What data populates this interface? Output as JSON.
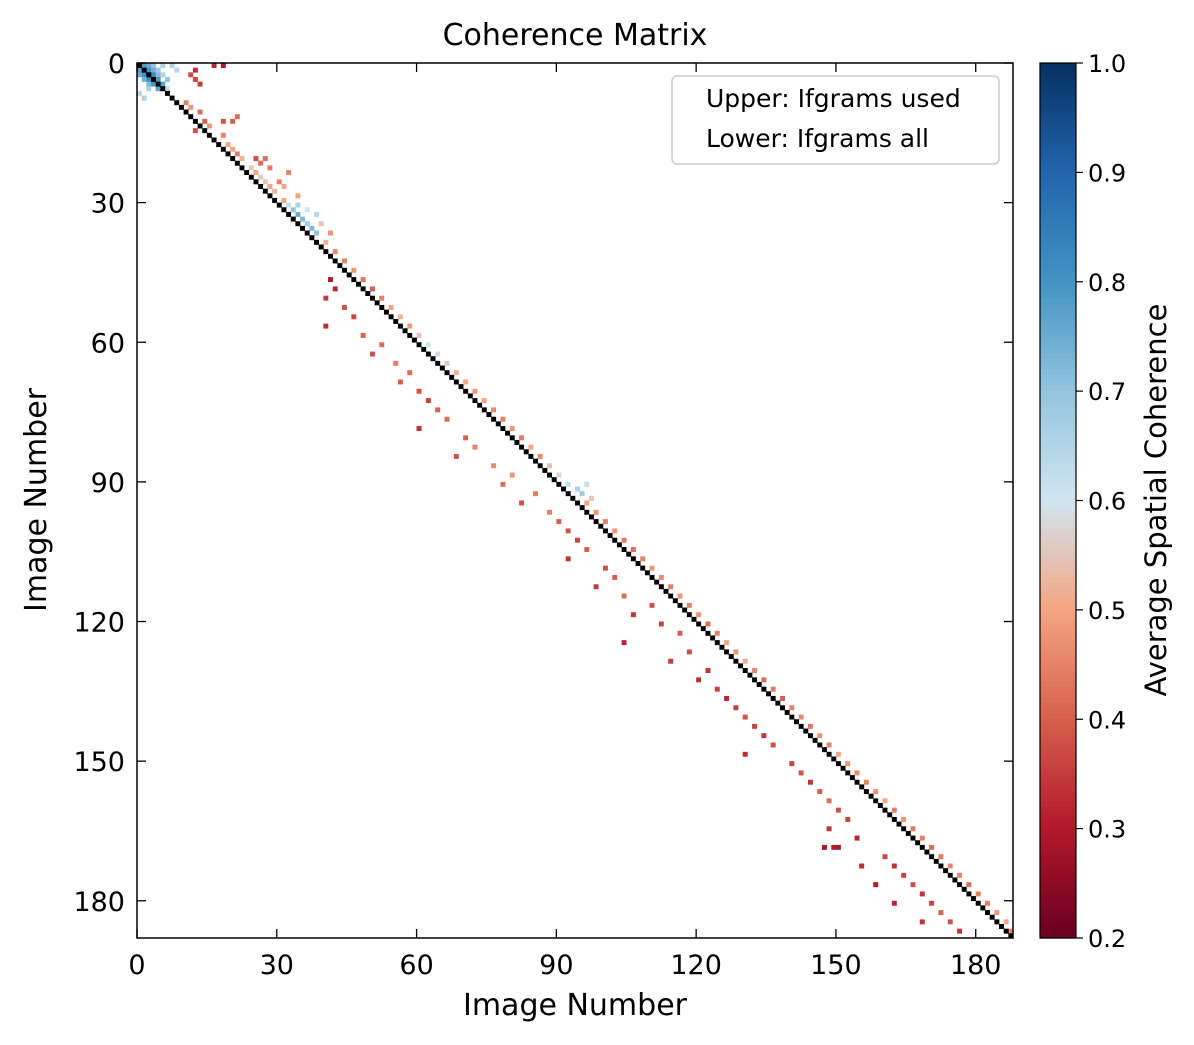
{
  "chart_data": {
    "type": "heatmap",
    "title": "Coherence Matrix",
    "xlabel": "Image Number",
    "ylabel": "Image Number",
    "n_images": 188,
    "xlim": [
      0,
      188
    ],
    "ylim": [
      188,
      0
    ],
    "x_ticks": [
      0,
      30,
      60,
      90,
      120,
      150,
      180
    ],
    "y_ticks": [
      0,
      30,
      60,
      90,
      120,
      150,
      180
    ],
    "diagonal_value": 1.0,
    "diagonal_color": "#000000",
    "colorbar": {
      "label": "Average Spatial Coherence",
      "vmin": 0.2,
      "vmax": 1.0,
      "ticks": [
        "0.2",
        "0.3",
        "0.4",
        "0.5",
        "0.6",
        "0.7",
        "0.8",
        "0.9",
        "1.0"
      ],
      "cmap": "RdBu",
      "colors": [
        "#67001f",
        "#b2182b",
        "#d6604d",
        "#f4a582",
        "#d1e5f0",
        "#92c5de",
        "#4393c3",
        "#2166ac",
        "#053061"
      ]
    },
    "legend": {
      "placement": "upper-right",
      "entries": [
        "Upper: Ifgrams used",
        "Lower: Ifgrams all"
      ]
    },
    "cells": [
      [
        0,
        1,
        0.78
      ],
      [
        0,
        2,
        0.75
      ],
      [
        0,
        3,
        0.7
      ],
      [
        1,
        0,
        0.78
      ],
      [
        1,
        2,
        0.8
      ],
      [
        1,
        3,
        0.74
      ],
      [
        1,
        4,
        0.68
      ],
      [
        2,
        0,
        0.75
      ],
      [
        2,
        1,
        0.8
      ],
      [
        2,
        3,
        0.82
      ],
      [
        2,
        4,
        0.72
      ],
      [
        2,
        5,
        0.66
      ],
      [
        3,
        1,
        0.74
      ],
      [
        3,
        2,
        0.82
      ],
      [
        3,
        4,
        0.79
      ],
      [
        3,
        6,
        0.7
      ],
      [
        4,
        2,
        0.72
      ],
      [
        4,
        3,
        0.79
      ],
      [
        4,
        5,
        0.77
      ],
      [
        5,
        4,
        0.77
      ],
      [
        5,
        6,
        0.62
      ],
      [
        0,
        5,
        0.65
      ],
      [
        0,
        7,
        0.66
      ],
      [
        1,
        8,
        0.64
      ],
      [
        6,
        0,
        0.64
      ],
      [
        7,
        1,
        0.66
      ],
      [
        5,
        2,
        0.66
      ],
      [
        8,
        10,
        0.45
      ],
      [
        9,
        11,
        0.48
      ],
      [
        10,
        13,
        0.42
      ],
      [
        13,
        15,
        0.48
      ],
      [
        14,
        12,
        0.38
      ],
      [
        12,
        14,
        0.4
      ],
      [
        3,
        12,
        0.37
      ],
      [
        4,
        13,
        0.35
      ],
      [
        2,
        11,
        0.37
      ],
      [
        1,
        12,
        0.33
      ],
      [
        0,
        16,
        0.32
      ],
      [
        0,
        18,
        0.3
      ],
      [
        12,
        18,
        0.38
      ],
      [
        12,
        20,
        0.4
      ],
      [
        11,
        21,
        0.42
      ],
      [
        15,
        18,
        0.45
      ],
      [
        17,
        19,
        0.5
      ],
      [
        19,
        21,
        0.45
      ],
      [
        18,
        20,
        0.5
      ],
      [
        20,
        22,
        0.52
      ],
      [
        22,
        24,
        0.55
      ],
      [
        23,
        25,
        0.5
      ],
      [
        25,
        27,
        0.55
      ],
      [
        26,
        28,
        0.5
      ],
      [
        24,
        26,
        0.56
      ],
      [
        20,
        25,
        0.38
      ],
      [
        21,
        26,
        0.42
      ],
      [
        22,
        28,
        0.44
      ],
      [
        25,
        30,
        0.45
      ],
      [
        27,
        29,
        0.52
      ],
      [
        29,
        31,
        0.5
      ],
      [
        30,
        32,
        0.62
      ],
      [
        31,
        33,
        0.7
      ],
      [
        32,
        34,
        0.75
      ],
      [
        33,
        35,
        0.72
      ],
      [
        34,
        36,
        0.68
      ],
      [
        35,
        37,
        0.72
      ],
      [
        36,
        38,
        0.7
      ],
      [
        30,
        34,
        0.66
      ],
      [
        31,
        36,
        0.6
      ],
      [
        32,
        38,
        0.64
      ],
      [
        34,
        39,
        0.55
      ],
      [
        36,
        41,
        0.48
      ],
      [
        28,
        34,
        0.5
      ],
      [
        26,
        31,
        0.5
      ],
      [
        23,
        32,
        0.45
      ],
      [
        20,
        27,
        0.42
      ],
      [
        38,
        40,
        0.52
      ],
      [
        40,
        42,
        0.46
      ],
      [
        42,
        44,
        0.45
      ],
      [
        44,
        46,
        0.48
      ],
      [
        46,
        48,
        0.43
      ],
      [
        48,
        50,
        0.4
      ],
      [
        50,
        52,
        0.45
      ],
      [
        52,
        54,
        0.5
      ],
      [
        54,
        56,
        0.52
      ],
      [
        56,
        58,
        0.48
      ],
      [
        58,
        60,
        0.55
      ],
      [
        60,
        62,
        0.6
      ],
      [
        62,
        64,
        0.58
      ],
      [
        64,
        66,
        0.55
      ],
      [
        66,
        68,
        0.52
      ],
      [
        68,
        70,
        0.5
      ],
      [
        70,
        72,
        0.48
      ],
      [
        72,
        74,
        0.5
      ],
      [
        74,
        76,
        0.46
      ],
      [
        76,
        78,
        0.45
      ],
      [
        78,
        80,
        0.48
      ],
      [
        80,
        82,
        0.44
      ],
      [
        82,
        84,
        0.5
      ],
      [
        84,
        86,
        0.46
      ],
      [
        86,
        88,
        0.54
      ],
      [
        88,
        90,
        0.58
      ],
      [
        90,
        92,
        0.62
      ],
      [
        91,
        94,
        0.66
      ],
      [
        92,
        95,
        0.68
      ],
      [
        90,
        96,
        0.62
      ],
      [
        93,
        97,
        0.55
      ],
      [
        94,
        96,
        0.5
      ],
      [
        96,
        98,
        0.48
      ],
      [
        98,
        100,
        0.45
      ],
      [
        100,
        102,
        0.48
      ],
      [
        102,
        104,
        0.44
      ],
      [
        104,
        106,
        0.42
      ],
      [
        106,
        108,
        0.45
      ],
      [
        108,
        110,
        0.48
      ],
      [
        110,
        112,
        0.46
      ],
      [
        112,
        114,
        0.44
      ],
      [
        114,
        116,
        0.48
      ],
      [
        116,
        118,
        0.45
      ],
      [
        118,
        120,
        0.47
      ],
      [
        120,
        122,
        0.42
      ],
      [
        122,
        124,
        0.45
      ],
      [
        124,
        126,
        0.5
      ],
      [
        126,
        128,
        0.48
      ],
      [
        128,
        130,
        0.52
      ],
      [
        130,
        132,
        0.45
      ],
      [
        132,
        134,
        0.42
      ],
      [
        134,
        136,
        0.44
      ],
      [
        136,
        138,
        0.4
      ],
      [
        138,
        140,
        0.45
      ],
      [
        140,
        142,
        0.46
      ],
      [
        142,
        144,
        0.44
      ],
      [
        144,
        146,
        0.48
      ],
      [
        146,
        148,
        0.45
      ],
      [
        148,
        150,
        0.5
      ],
      [
        150,
        152,
        0.48
      ],
      [
        152,
        154,
        0.46
      ],
      [
        154,
        156,
        0.45
      ],
      [
        156,
        158,
        0.48
      ],
      [
        158,
        160,
        0.5
      ],
      [
        160,
        162,
        0.45
      ],
      [
        162,
        164,
        0.48
      ],
      [
        164,
        166,
        0.44
      ],
      [
        166,
        168,
        0.45
      ],
      [
        168,
        170,
        0.42
      ],
      [
        170,
        172,
        0.44
      ],
      [
        172,
        174,
        0.46
      ],
      [
        174,
        176,
        0.45
      ],
      [
        176,
        178,
        0.42
      ],
      [
        178,
        180,
        0.44
      ],
      [
        180,
        182,
        0.45
      ],
      [
        182,
        184,
        0.48
      ],
      [
        184,
        186,
        0.5
      ],
      [
        186,
        187,
        0.46
      ],
      [
        46,
        41,
        0.3
      ],
      [
        48,
        42,
        0.32
      ],
      [
        50,
        40,
        0.35
      ],
      [
        52,
        44,
        0.38
      ],
      [
        54,
        46,
        0.36
      ],
      [
        56,
        40,
        0.33
      ],
      [
        58,
        48,
        0.4
      ],
      [
        60,
        52,
        0.42
      ],
      [
        62,
        50,
        0.38
      ],
      [
        64,
        55,
        0.44
      ],
      [
        66,
        58,
        0.42
      ],
      [
        68,
        56,
        0.4
      ],
      [
        70,
        60,
        0.38
      ],
      [
        72,
        62,
        0.36
      ],
      [
        74,
        64,
        0.4
      ],
      [
        76,
        66,
        0.42
      ],
      [
        78,
        60,
        0.33
      ],
      [
        80,
        70,
        0.4
      ],
      [
        82,
        72,
        0.45
      ],
      [
        84,
        68,
        0.38
      ],
      [
        86,
        76,
        0.46
      ],
      [
        88,
        80,
        0.48
      ],
      [
        90,
        78,
        0.42
      ],
      [
        92,
        85,
        0.44
      ],
      [
        94,
        82,
        0.38
      ],
      [
        96,
        88,
        0.45
      ],
      [
        98,
        90,
        0.4
      ],
      [
        100,
        92,
        0.38
      ],
      [
        102,
        94,
        0.36
      ],
      [
        104,
        96,
        0.4
      ],
      [
        106,
        92,
        0.34
      ],
      [
        108,
        100,
        0.38
      ],
      [
        110,
        102,
        0.4
      ],
      [
        112,
        98,
        0.35
      ],
      [
        114,
        104,
        0.42
      ],
      [
        116,
        110,
        0.38
      ],
      [
        118,
        106,
        0.34
      ],
      [
        120,
        112,
        0.36
      ],
      [
        122,
        116,
        0.4
      ],
      [
        124,
        104,
        0.32
      ],
      [
        126,
        118,
        0.38
      ],
      [
        128,
        114,
        0.35
      ],
      [
        130,
        122,
        0.34
      ],
      [
        132,
        120,
        0.33
      ],
      [
        134,
        124,
        0.36
      ],
      [
        136,
        126,
        0.32
      ],
      [
        138,
        128,
        0.35
      ],
      [
        140,
        130,
        0.38
      ],
      [
        142,
        132,
        0.36
      ],
      [
        144,
        134,
        0.34
      ],
      [
        146,
        136,
        0.38
      ],
      [
        148,
        130,
        0.33
      ],
      [
        150,
        140,
        0.36
      ],
      [
        152,
        142,
        0.38
      ],
      [
        154,
        144,
        0.34
      ],
      [
        156,
        146,
        0.4
      ],
      [
        158,
        148,
        0.42
      ],
      [
        160,
        150,
        0.38
      ],
      [
        162,
        152,
        0.36
      ],
      [
        164,
        148,
        0.34
      ],
      [
        166,
        154,
        0.32
      ],
      [
        168,
        150,
        0.3
      ],
      [
        170,
        160,
        0.36
      ],
      [
        172,
        162,
        0.34
      ],
      [
        174,
        164,
        0.36
      ],
      [
        176,
        166,
        0.38
      ],
      [
        178,
        168,
        0.34
      ],
      [
        180,
        170,
        0.36
      ],
      [
        182,
        172,
        0.4
      ],
      [
        184,
        174,
        0.38
      ],
      [
        186,
        176,
        0.34
      ],
      [
        168,
        147,
        0.3
      ],
      [
        168,
        149,
        0.31
      ],
      [
        172,
        155,
        0.33
      ],
      [
        176,
        158,
        0.3
      ],
      [
        180,
        162,
        0.32
      ],
      [
        184,
        168,
        0.34
      ]
    ]
  }
}
